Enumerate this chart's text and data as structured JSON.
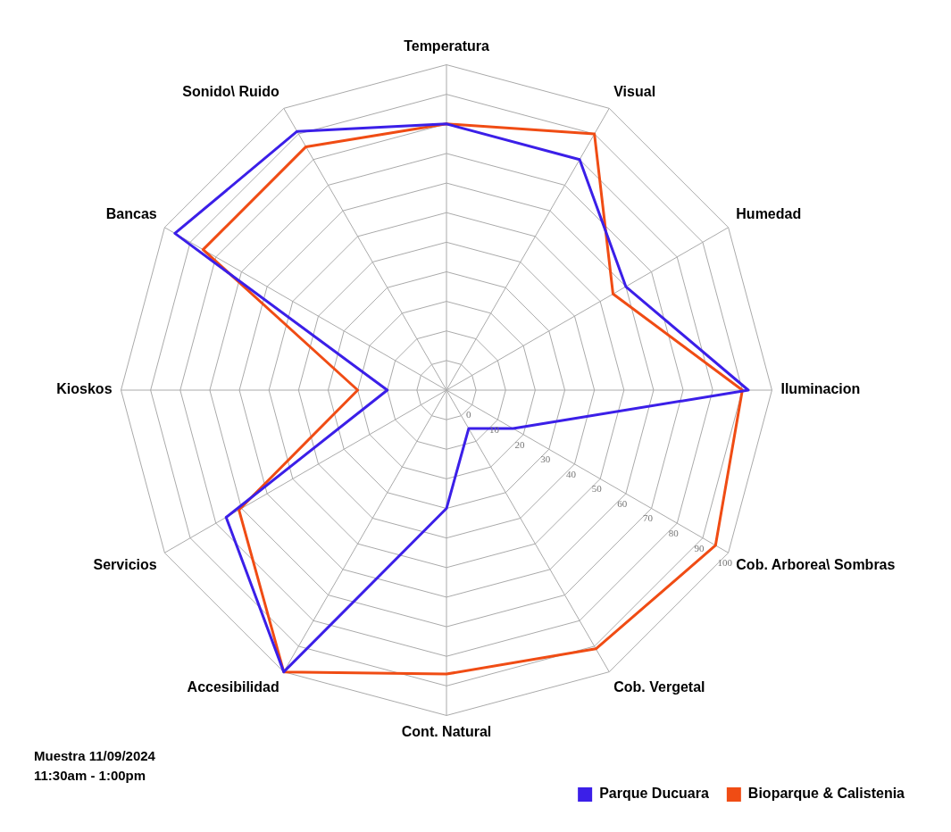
{
  "chart_data": {
    "type": "radar",
    "categories": [
      "Temperatura",
      "Visual",
      "Humedad",
      "Iluminacion",
      "Cob. Arborea\\ Sombras",
      "Cob. Vergetal",
      "Cont. Natural",
      "Accesibilidad",
      "Servicios",
      "Kioskos",
      "Bancas",
      "Sonido\\ Ruido"
    ],
    "series": [
      {
        "name": "Parque Ducuara",
        "color": "#3b1fe8",
        "values": [
          80,
          80,
          60,
          92,
          16,
          5,
          30,
          100,
          76,
          10,
          96,
          91
        ]
      },
      {
        "name": "Bioparque & Calistenia",
        "color": "#f04c14",
        "values": [
          80,
          90,
          55,
          90,
          95,
          91,
          86,
          100,
          71,
          20,
          85,
          85
        ]
      }
    ],
    "ylim": [
      -10,
      100
    ],
    "yticks": [
      0,
      10,
      20,
      30,
      40,
      50,
      60,
      70,
      80,
      90,
      100
    ],
    "grid": true,
    "legend": "bottom right",
    "marker": "none",
    "line_style": "solid",
    "annotations": [
      "Muestra 11/09/2024",
      "11:30am - 1:00pm"
    ]
  }
}
